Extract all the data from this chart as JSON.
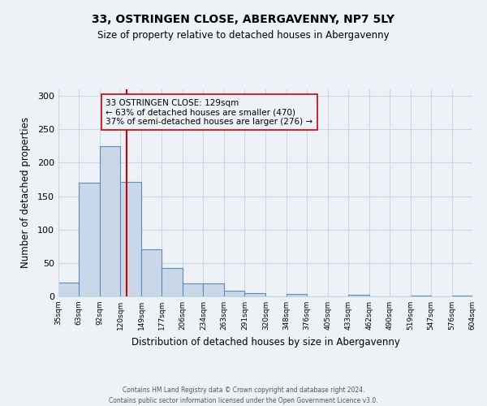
{
  "title": "33, OSTRINGEN CLOSE, ABERGAVENNY, NP7 5LY",
  "subtitle": "Size of property relative to detached houses in Abergavenny",
  "xlabel": "Distribution of detached houses by size in Abergavenny",
  "ylabel": "Number of detached properties",
  "bin_edges": [
    35,
    63,
    92,
    120,
    149,
    177,
    206,
    234,
    263,
    291,
    320,
    348,
    376,
    405,
    433,
    462,
    490,
    519,
    547,
    576,
    604
  ],
  "bar_heights": [
    21,
    170,
    225,
    172,
    70,
    43,
    20,
    19,
    8,
    5,
    0,
    4,
    0,
    0,
    2,
    0,
    0,
    1,
    0,
    1
  ],
  "bar_color": "#c8d8e8",
  "bar_edge_color": "#5b8db8",
  "property_size": 129,
  "vline_color": "#cc0000",
  "annotation_title": "33 OSTRINGEN CLOSE: 129sqm",
  "annotation_line1": "← 63% of detached houses are smaller (470)",
  "annotation_line2": "37% of semi-detached houses are larger (276) →",
  "annotation_box_edge": "#cc0000",
  "ylim": [
    0,
    310
  ],
  "yticks": [
    0,
    50,
    100,
    150,
    200,
    250,
    300
  ],
  "footer1": "Contains HM Land Registry data © Crown copyright and database right 2024.",
  "footer2": "Contains public sector information licensed under the Open Government Licence v3.0.",
  "background_color": "#eef2f7",
  "grid_color": "#c8d8e8"
}
